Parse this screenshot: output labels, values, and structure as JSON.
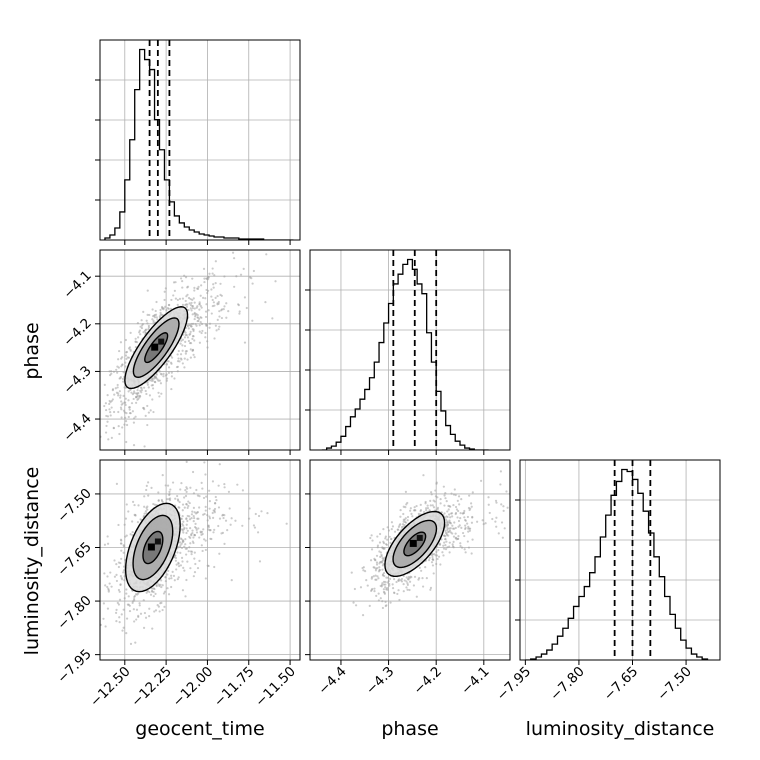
{
  "chart_data": {
    "type": "corner",
    "parameters": [
      "geocent_time",
      "phase",
      "luminosity_distance"
    ],
    "colors": {
      "line": "#000000",
      "grid": "#b0b0b0",
      "scatter": "#a0a0a0",
      "quantile": "#000000"
    },
    "ranges": {
      "geocent_time": [
        -12.65,
        -11.44
      ],
      "phase": [
        -4.465,
        -4.045
      ],
      "luminosity_distance": [
        -7.965,
        -7.405
      ]
    },
    "ticks": {
      "geocent_time": {
        "values": [
          -12.5,
          -12.25,
          -12.0,
          -11.75,
          -11.5
        ],
        "labels": [
          "−12.50",
          "−12.25",
          "−12.00",
          "−11.75",
          "−11.50"
        ]
      },
      "phase": {
        "values": [
          -4.4,
          -4.3,
          -4.2,
          -4.1
        ],
        "labels": [
          "−4.4",
          "−4.3",
          "−4.2",
          "−4.1"
        ]
      },
      "luminosity_distance": {
        "values": [
          -7.95,
          -7.8,
          -7.65,
          -7.5
        ],
        "labels": [
          "−7.95",
          "−7.80",
          "−7.65",
          "−7.50"
        ]
      }
    },
    "quantiles": {
      "geocent_time": [
        -12.35,
        -12.3,
        -12.23
      ],
      "phase": [
        -4.29,
        -4.245,
        -4.2
      ],
      "luminosity_distance": [
        -7.7,
        -7.65,
        -7.6
      ]
    },
    "histograms": {
      "geocent_time": {
        "edges": [
          -12.62,
          -12.59,
          -12.56,
          -12.53,
          -12.5,
          -12.47,
          -12.44,
          -12.41,
          -12.38,
          -12.35,
          -12.32,
          -12.29,
          -12.26,
          -12.23,
          -12.2,
          -12.17,
          -12.14,
          -12.11,
          -12.08,
          -12.05,
          -12.02,
          -11.99,
          -11.96,
          -11.93,
          -11.9,
          -11.87,
          -11.84,
          -11.81,
          -11.78,
          -11.75,
          -11.72,
          -11.69,
          -11.66,
          -11.63,
          -11.6,
          -11.57,
          -11.54,
          -11.51,
          -11.48
        ],
        "counts": [
          2,
          5,
          12,
          28,
          60,
          100,
          150,
          190,
          180,
          170,
          120,
          90,
          60,
          38,
          24,
          17,
          13,
          10,
          8,
          6,
          5,
          4,
          3,
          3,
          2,
          2,
          2,
          1,
          1,
          1,
          1,
          1,
          0,
          0,
          0,
          0,
          0,
          0
        ]
      },
      "phase": {
        "edges": [
          -4.44,
          -4.43,
          -4.42,
          -4.41,
          -4.4,
          -4.39,
          -4.38,
          -4.37,
          -4.36,
          -4.35,
          -4.34,
          -4.33,
          -4.32,
          -4.31,
          -4.3,
          -4.29,
          -4.28,
          -4.27,
          -4.26,
          -4.25,
          -4.24,
          -4.23,
          -4.22,
          -4.21,
          -4.2,
          -4.19,
          -4.18,
          -4.17,
          -4.16,
          -4.15,
          -4.14,
          -4.13,
          -4.12,
          -4.11,
          -4.1,
          -4.09
        ],
        "counts": [
          0,
          2,
          4,
          8,
          14,
          24,
          34,
          42,
          52,
          62,
          74,
          90,
          110,
          130,
          150,
          170,
          180,
          190,
          195,
          185,
          170,
          160,
          120,
          90,
          60,
          40,
          25,
          16,
          9,
          5,
          2,
          1,
          0,
          0,
          0
        ]
      },
      "luminosity_distance": {
        "edges": [
          -7.95,
          -7.935,
          -7.92,
          -7.905,
          -7.89,
          -7.875,
          -7.86,
          -7.845,
          -7.83,
          -7.815,
          -7.8,
          -7.785,
          -7.77,
          -7.755,
          -7.74,
          -7.725,
          -7.71,
          -7.695,
          -7.68,
          -7.665,
          -7.65,
          -7.635,
          -7.62,
          -7.605,
          -7.59,
          -7.575,
          -7.56,
          -7.545,
          -7.53,
          -7.515,
          -7.5,
          -7.485,
          -7.47,
          -7.455,
          -7.44
        ],
        "counts": [
          0,
          1,
          3,
          6,
          10,
          16,
          24,
          32,
          42,
          54,
          64,
          74,
          88,
          104,
          124,
          146,
          166,
          180,
          192,
          190,
          182,
          168,
          150,
          128,
          104,
          84,
          64,
          46,
          32,
          20,
          12,
          6,
          3,
          1
        ]
      }
    },
    "contours": {
      "phase_vs_geocent_time": [
        {
          "cx": -12.31,
          "cy": -4.25,
          "sx": 0.115,
          "sy": 0.052,
          "rho": 0.8,
          "levels": [
            0.6,
            1.2,
            1.65
          ]
        }
      ],
      "luminosity_distance_vs_geocent_time": [
        {
          "cx": -12.33,
          "cy": -7.65,
          "sx": 0.1,
          "sy": 0.075,
          "rho": 0.5,
          "levels": [
            0.6,
            1.2,
            1.65
          ]
        }
      ],
      "luminosity_distance_vs_phase": [
        {
          "cx": -4.245,
          "cy": -7.64,
          "sx": 0.038,
          "sy": 0.055,
          "rho": 0.65,
          "levels": [
            0.6,
            1.2,
            1.65
          ]
        }
      ]
    },
    "scatter_centers": {
      "phase_vs_geocent_time": {
        "cx": -12.3,
        "cy": -4.25,
        "sx": 0.14,
        "sy": 0.07,
        "rho": 0.78
      },
      "luminosity_distance_vs_geocent_time": {
        "cx": -12.31,
        "cy": -7.65,
        "sx": 0.12,
        "sy": 0.085,
        "rho": 0.5
      },
      "luminosity_distance_vs_phase": {
        "cx": -4.245,
        "cy": -7.64,
        "sx": 0.045,
        "sy": 0.065,
        "rho": 0.65
      }
    },
    "xlabels": [
      "geocent_time",
      "phase",
      "luminosity_distance"
    ],
    "ylabels": [
      "",
      "phase",
      "luminosity_distance"
    ]
  }
}
